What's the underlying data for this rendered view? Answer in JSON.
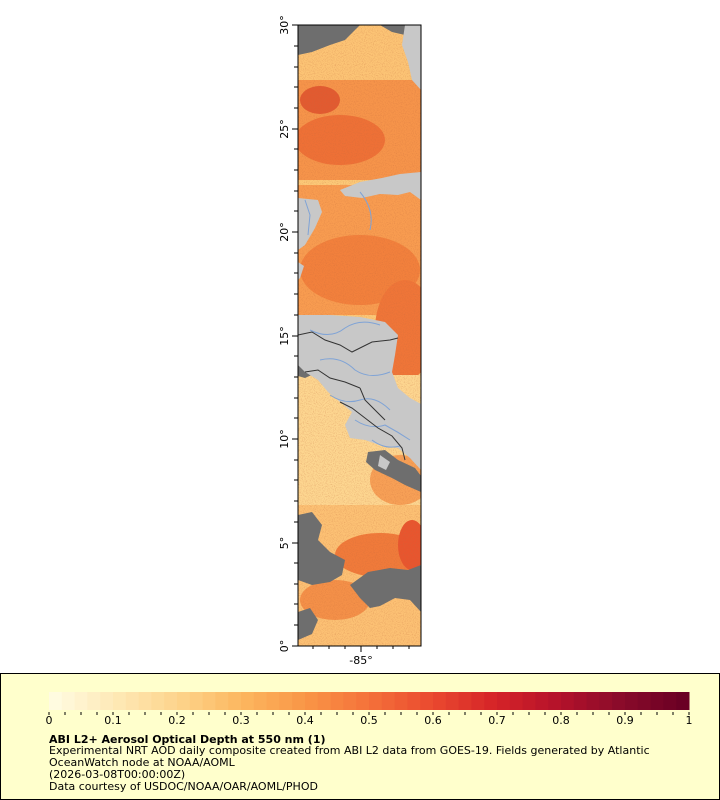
{
  "map": {
    "lat_ticks": [
      "0°",
      "5°",
      "10°",
      "15°",
      "20°",
      "25°",
      "30°"
    ],
    "lon_ticks": [
      "-85°"
    ],
    "colors": {
      "land": "#c8c8c8",
      "no_data": "#6e6e6e",
      "rivers": "#7fa3d6",
      "borders": "#333333"
    }
  },
  "colorbar": {
    "tick_labels": [
      "0",
      "0.1",
      "0.2",
      "0.3",
      "0.4",
      "0.5",
      "0.6",
      "0.7",
      "0.8",
      "0.9",
      "1"
    ],
    "range": [
      0,
      1
    ],
    "colors": [
      "#fffbe0",
      "#fee8b4",
      "#fdd38a",
      "#fcb65e",
      "#f99546",
      "#f4713a",
      "#ea4a2f",
      "#d62428",
      "#b5122a",
      "#8a0b2a",
      "#6a0024"
    ]
  },
  "caption": {
    "title": "ABI L2+ Aerosol Optical Depth at 550 nm (1)",
    "description": "Experimental NRT AOD daily composite created from ABI L2 data from GOES-19. Fields generated by Atlantic OceanWatch node at NOAA/AOML",
    "date": "(2026-03-08T00:00:00Z)",
    "credit": "Data courtesy of USDOC/NOAA/OAR/AOML/PHOD"
  }
}
